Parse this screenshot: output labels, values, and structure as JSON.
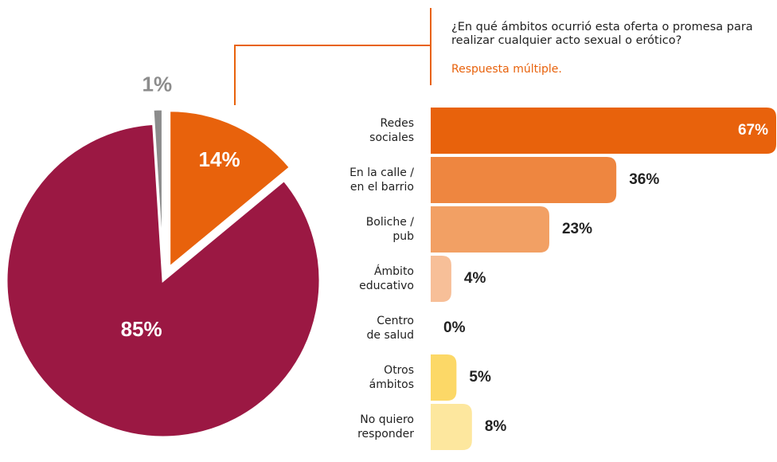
{
  "chart_data": [
    {
      "type": "pie",
      "values": [
        14,
        85,
        1
      ],
      "value_labels": [
        "14%",
        "85%",
        "1%"
      ],
      "colors": [
        "#e8620c",
        "#9b1843",
        "#8c8c8c"
      ],
      "exploded": [
        true,
        false,
        true
      ]
    },
    {
      "type": "bar",
      "orientation": "horizontal",
      "title": "¿En qué ámbitos ocurrió esta oferta o promesa para realizar cualquier acto sexual o erótico?",
      "subtitle": "Respuesta múltiple.",
      "categories": [
        "Redes\nsociales",
        "En la calle /\nen el barrio",
        "Boliche /\npub",
        "Ámbito\neducativo",
        "Centro\nde salud",
        "Otros\námbitos",
        "No quiero\nresponder"
      ],
      "values": [
        67,
        36,
        23,
        4,
        0,
        5,
        8
      ],
      "value_labels": [
        "67%",
        "36%",
        "23%",
        "4%",
        "0%",
        "5%",
        "8%"
      ],
      "colors": [
        "#e8620c",
        "#ee8640",
        "#f2a064",
        "#f7bf98",
        "#f7bf98",
        "#fcd867",
        "#fde79e"
      ]
    }
  ]
}
